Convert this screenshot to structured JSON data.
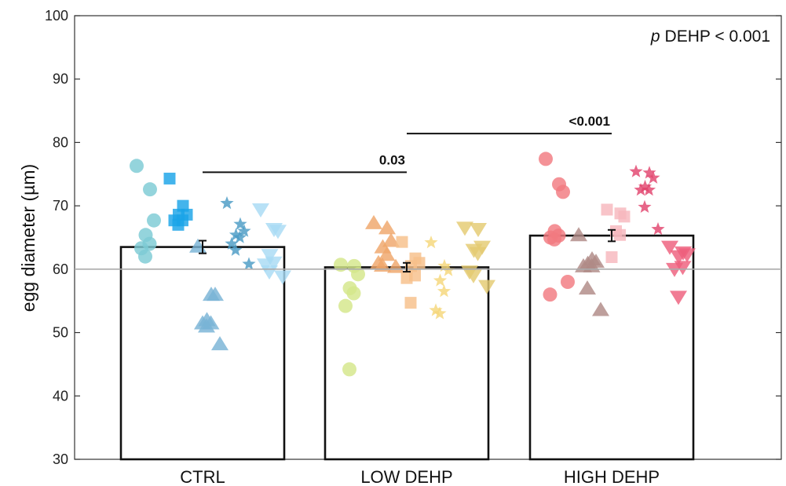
{
  "chart_data": {
    "type": "bar",
    "title": "",
    "xlabel": "",
    "ylabel": "egg diameter (µm)",
    "ylim": [
      30,
      100
    ],
    "yticks": [
      30,
      40,
      50,
      60,
      70,
      80,
      90,
      100
    ],
    "grid": false,
    "reference_line": 60,
    "categories": [
      "CTRL",
      "LOW DEHP",
      "HIGH DEHP"
    ],
    "values": [
      63.5,
      60.3,
      65.3
    ],
    "error": [
      1.0,
      0.7,
      0.9
    ],
    "annotation": "DEHP < 0.001",
    "annotation_italic": "p",
    "comparisons": [
      {
        "from": "CTRL",
        "to": "LOW DEHP",
        "label": "0.03",
        "y": 75.3
      },
      {
        "from": "LOW DEHP",
        "to": "HIGH DEHP",
        "label": "<0.001",
        "y": 81.4
      }
    ],
    "points": [
      {
        "group": "CTRL",
        "marker": "circle",
        "color": "#7ccbd4",
        "values": [
          76.3,
          72.6,
          67.7,
          65.4,
          64.0,
          63.3,
          62.0
        ]
      },
      {
        "group": "CTRL",
        "marker": "square",
        "color": "#1aa3e8",
        "values": [
          74.3,
          70.0,
          68.6,
          68.6,
          67.7,
          67.7,
          67.0
        ]
      },
      {
        "group": "CTRL",
        "marker": "triangle-up",
        "color": "#79b3d6",
        "values": [
          63.6,
          56.0,
          56.0,
          52.0,
          51.5,
          51.5,
          51.0,
          48.2
        ]
      },
      {
        "group": "CTRL",
        "marker": "star",
        "color": "#4a9bc4",
        "values": [
          70.4,
          67.1,
          66.0,
          65.4,
          65.0,
          64.0,
          63.0,
          60.8
        ]
      },
      {
        "group": "CTRL",
        "marker": "triangle-down",
        "color": "#a8daf4",
        "values": [
          69.4,
          66.3,
          66.0,
          62.2,
          61.0,
          60.7,
          59.6,
          58.8
        ]
      },
      {
        "group": "LOW DEHP",
        "marker": "circle",
        "color": "#d4e68a",
        "values": [
          60.7,
          60.5,
          59.2,
          57.0,
          56.2,
          54.2,
          44.2
        ]
      },
      {
        "group": "LOW DEHP",
        "marker": "triangle-up",
        "color": "#efa66a",
        "values": [
          67.3,
          66.5,
          64.5,
          63.5,
          62.3,
          61.0,
          60.6,
          60.4
        ]
      },
      {
        "group": "LOW DEHP",
        "marker": "square",
        "color": "#f6bf8a",
        "values": [
          64.3,
          61.7,
          61.0,
          60.5,
          59.0,
          58.6,
          54.7
        ]
      },
      {
        "group": "LOW DEHP",
        "marker": "star",
        "color": "#f5d77a",
        "values": [
          64.2,
          60.5,
          59.8,
          58.2,
          56.5,
          53.5,
          53.0
        ]
      },
      {
        "group": "LOW DEHP",
        "marker": "triangle-down",
        "color": "#e4cb72",
        "values": [
          66.5,
          66.3,
          63.5,
          63.0,
          62.5,
          59.6,
          59.0,
          57.3
        ]
      },
      {
        "group": "HIGH DEHP",
        "marker": "circle",
        "color": "#f27a80",
        "values": [
          77.4,
          73.4,
          72.2,
          66.0,
          65.3,
          65.0,
          64.7,
          58.0,
          56.0
        ]
      },
      {
        "group": "HIGH DEHP",
        "marker": "triangle-up",
        "color": "#b08a86",
        "values": [
          65.4,
          61.6,
          61.2,
          60.9,
          60.5,
          60.5,
          57.0,
          53.6
        ]
      },
      {
        "group": "HIGH DEHP",
        "marker": "square",
        "color": "#f7b7bd",
        "values": [
          69.4,
          68.8,
          68.3,
          66.0,
          65.4,
          61.9
        ]
      },
      {
        "group": "HIGH DEHP",
        "marker": "star",
        "color": "#e2446e",
        "values": [
          75.4,
          75.2,
          74.4,
          73.0,
          72.5,
          72.5,
          69.8,
          66.3
        ]
      },
      {
        "group": "HIGH DEHP",
        "marker": "triangle-down",
        "color": "#ee5f7d",
        "values": [
          63.5,
          62.6,
          62.3,
          62.0,
          60.3,
          60.0,
          55.6
        ]
      }
    ]
  }
}
